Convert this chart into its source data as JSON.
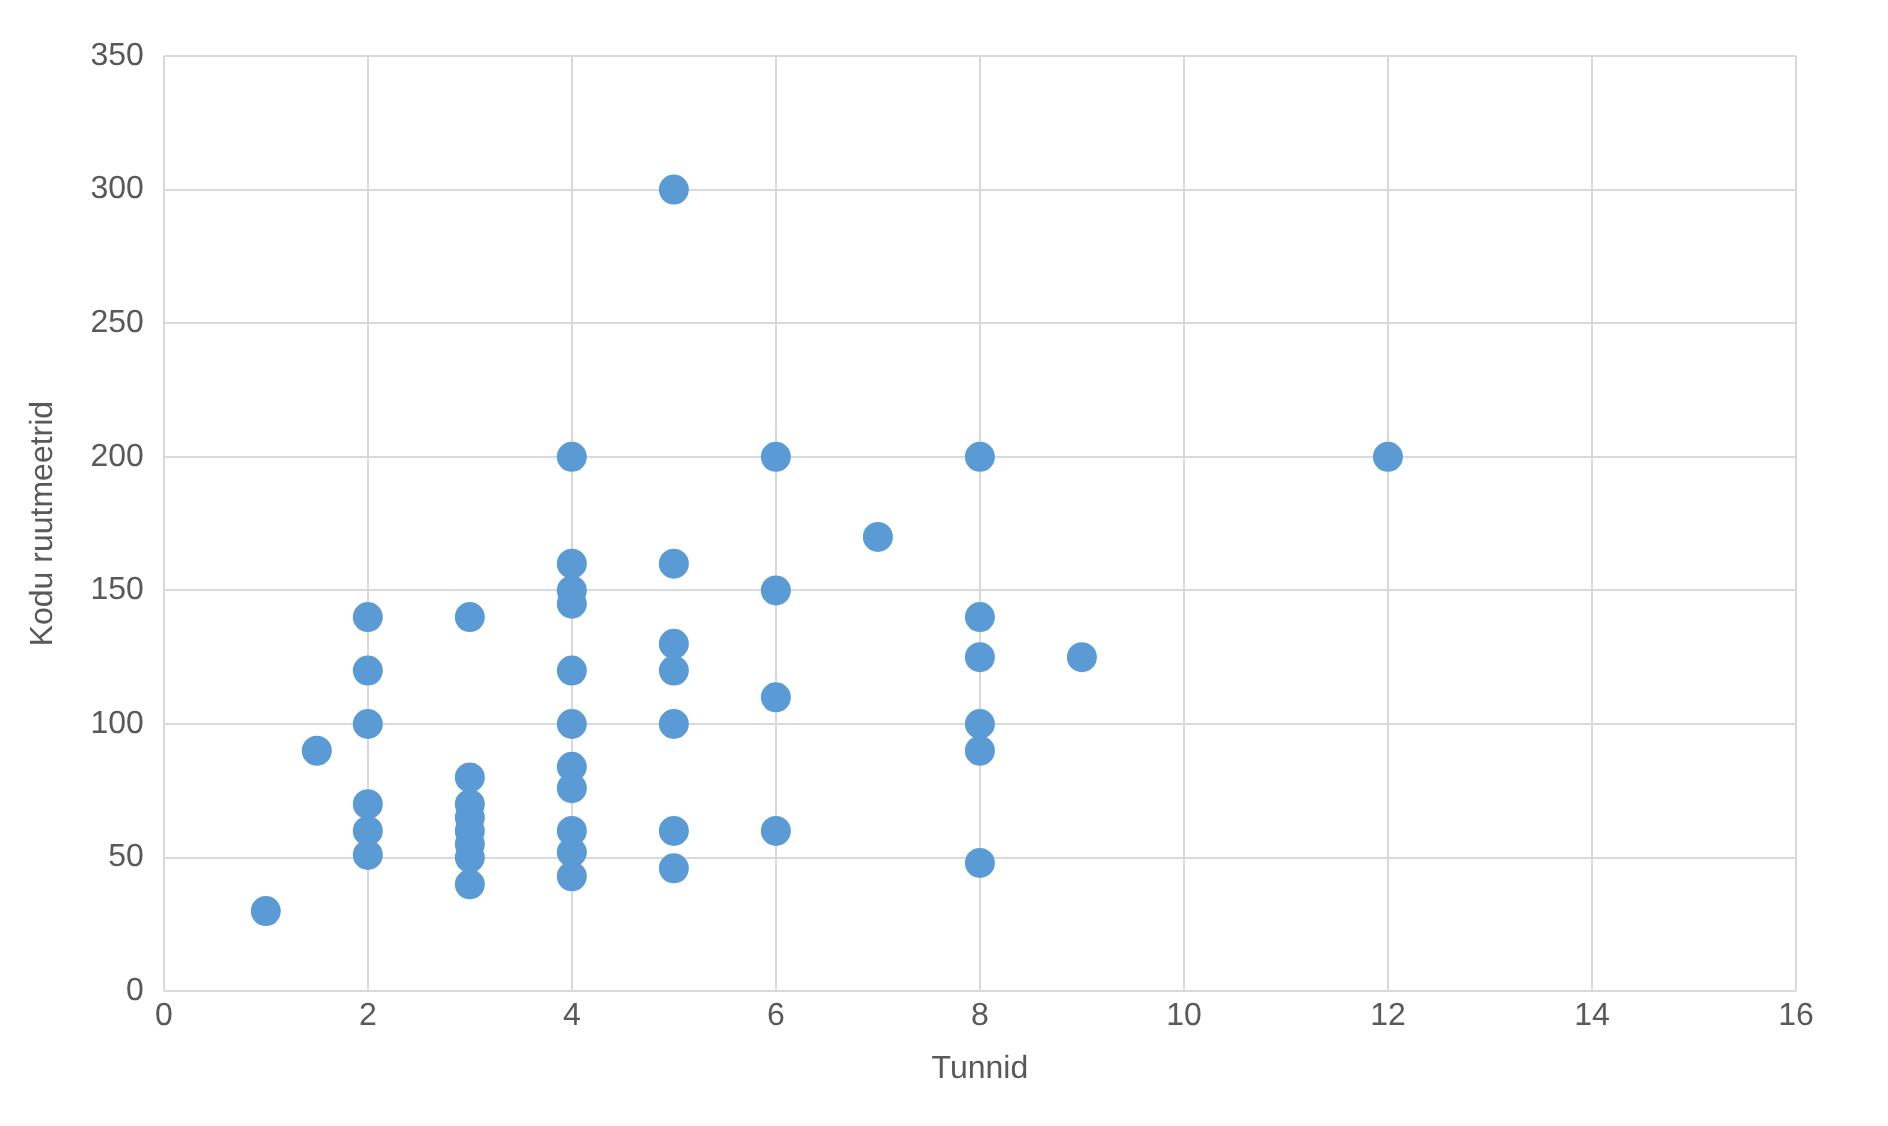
{
  "chart_data": {
    "type": "scatter",
    "xlabel": "Tunnid",
    "ylabel": "Kodu ruutmeetrid",
    "x": [
      1,
      1.5,
      2,
      2,
      2,
      2,
      2,
      2,
      3,
      3,
      3,
      3,
      3,
      3,
      3,
      3,
      4,
      4,
      4,
      4,
      4,
      4,
      4,
      4,
      4,
      4,
      4,
      5,
      5,
      5,
      5,
      5,
      5,
      5,
      6,
      6,
      6,
      6,
      7,
      8,
      8,
      8,
      8,
      8,
      8,
      9,
      12
    ],
    "values": [
      30,
      90,
      140,
      120,
      100,
      70,
      60,
      51,
      140,
      80,
      70,
      65,
      60,
      55,
      50,
      40,
      200,
      160,
      150,
      145,
      120,
      100,
      84,
      76,
      60,
      52,
      43,
      300,
      160,
      130,
      120,
      100,
      60,
      46,
      200,
      150,
      110,
      60,
      170,
      200,
      140,
      125,
      100,
      90,
      48,
      125,
      200
    ],
    "color": "#5b9bd5",
    "marker": "circle",
    "grid": true,
    "xlim": [
      0,
      16
    ],
    "xticks": [
      0,
      2,
      4,
      6,
      8,
      10,
      12,
      14,
      16
    ],
    "ylim": [
      0,
      350
    ],
    "yticks": [
      0,
      50,
      100,
      150,
      200,
      250,
      300,
      350
    ]
  }
}
